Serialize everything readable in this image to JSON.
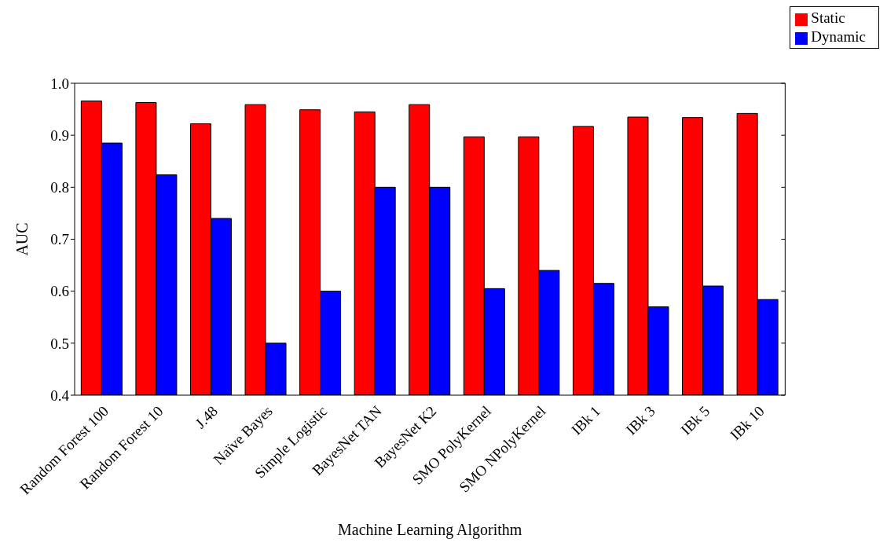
{
  "chart_data": {
    "type": "bar",
    "xlabel": "Machine Learning Algorithm",
    "ylabel": "AUC",
    "categories": [
      "Random Forest 100",
      "Random Forest 10",
      "J.48",
      "Naïve Bayes",
      "Simple Logistic",
      "BayesNet TAN",
      "BayesNet K2",
      "SMO PolyKernel",
      "SMO NPolyKernel",
      "IBk 1",
      "IBk 3",
      "IBk 5",
      "IBk 10"
    ],
    "series": [
      {
        "name": "Static",
        "color": "#ff0000",
        "values": [
          0.966,
          0.963,
          0.922,
          0.959,
          0.949,
          0.945,
          0.959,
          0.897,
          0.897,
          0.917,
          0.935,
          0.934,
          0.942
        ]
      },
      {
        "name": "Dynamic",
        "color": "#0000ff",
        "values": [
          0.885,
          0.824,
          0.74,
          0.5,
          0.6,
          0.8,
          0.8,
          0.605,
          0.64,
          0.615,
          0.57,
          0.61,
          0.584
        ]
      }
    ],
    "ylim": [
      0.4,
      1.0
    ],
    "yticks": [
      0.4,
      0.5,
      0.6,
      0.7,
      0.8,
      0.9,
      {
        "value": 1.0,
        "label": "1.0"
      }
    ],
    "grid": false,
    "legend": "top right"
  }
}
